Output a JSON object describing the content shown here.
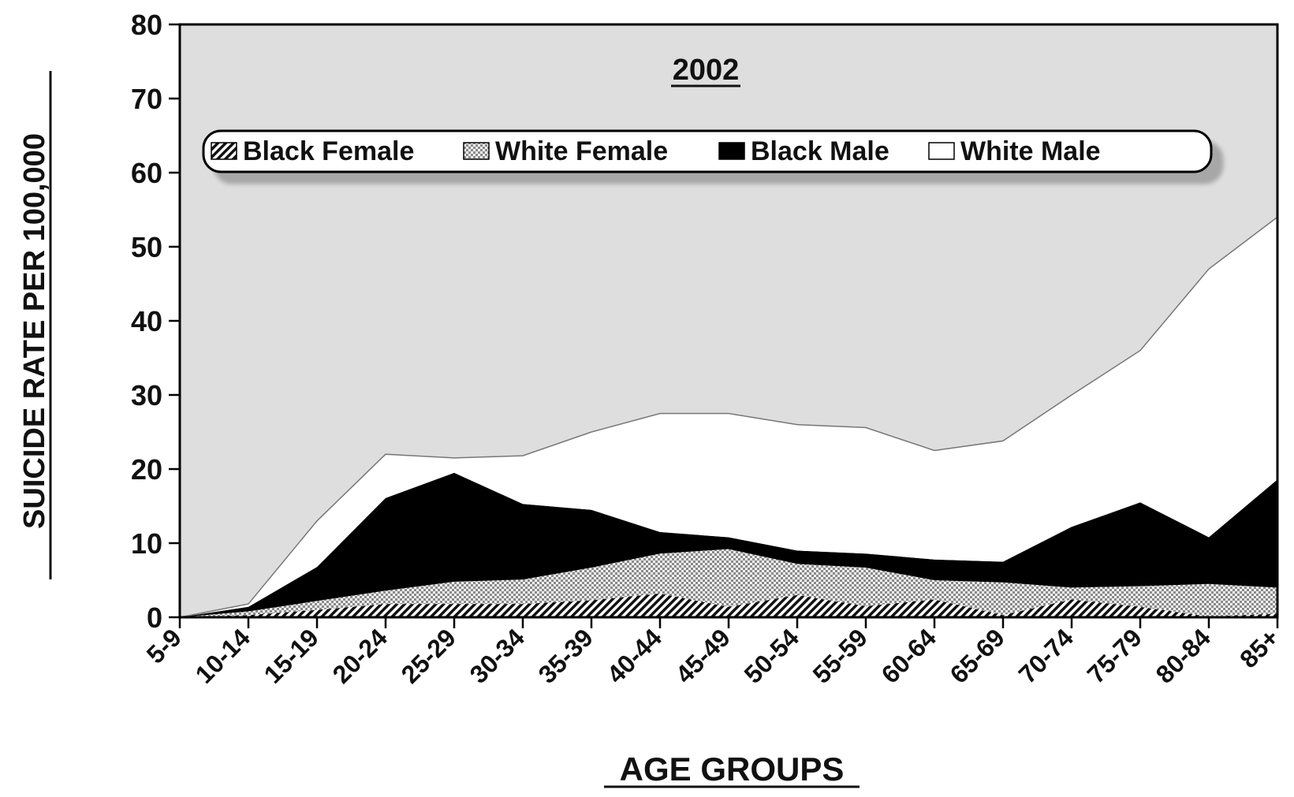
{
  "chart_data": {
    "type": "area",
    "stacked": true,
    "title": "2002",
    "xlabel": "AGE GROUPS",
    "ylabel": "SUICIDE RATE PER 100,000",
    "ylim": [
      0,
      80
    ],
    "yticks": [
      0,
      10,
      20,
      30,
      40,
      50,
      60,
      70,
      80
    ],
    "grid": false,
    "legend_position": "top-center",
    "categories": [
      "5-9",
      "10-14",
      "15-19",
      "20-24",
      "25-29",
      "30-34",
      "35-39",
      "40-44",
      "45-49",
      "50-54",
      "55-59",
      "60-64",
      "65-69",
      "70-74",
      "75-79",
      "80-84",
      "85+"
    ],
    "series": [
      {
        "name": "Black Female",
        "pattern": "diagonal-hatch",
        "values": [
          0,
          0.3,
          1.0,
          1.8,
          1.8,
          1.8,
          2.3,
          3.2,
          1.4,
          3.0,
          1.5,
          2.4,
          0.3,
          2.4,
          1.4,
          0.1,
          0.5
        ]
      },
      {
        "name": "White Female",
        "pattern": "crosshatch",
        "values": [
          0,
          0.5,
          1.2,
          1.8,
          3.0,
          3.3,
          4.4,
          5.4,
          7.8,
          4.2,
          5.2,
          2.6,
          4.4,
          1.6,
          2.8,
          4.4,
          3.5
        ]
      },
      {
        "name": "Black Male",
        "pattern": "solid-black",
        "values": [
          0,
          0.6,
          4.6,
          12.5,
          14.7,
          10.2,
          7.8,
          2.9,
          1.6,
          1.8,
          1.9,
          2.8,
          2.8,
          8.2,
          11.3,
          6.3,
          14.6
        ]
      },
      {
        "name": "White Male",
        "pattern": "solid-white",
        "values": [
          0,
          0.4,
          6.2,
          5.9,
          2.0,
          6.5,
          10.5,
          16.0,
          16.7,
          17.0,
          17.0,
          14.7,
          16.3,
          17.8,
          20.5,
          36.2,
          35.4
        ]
      }
    ]
  }
}
